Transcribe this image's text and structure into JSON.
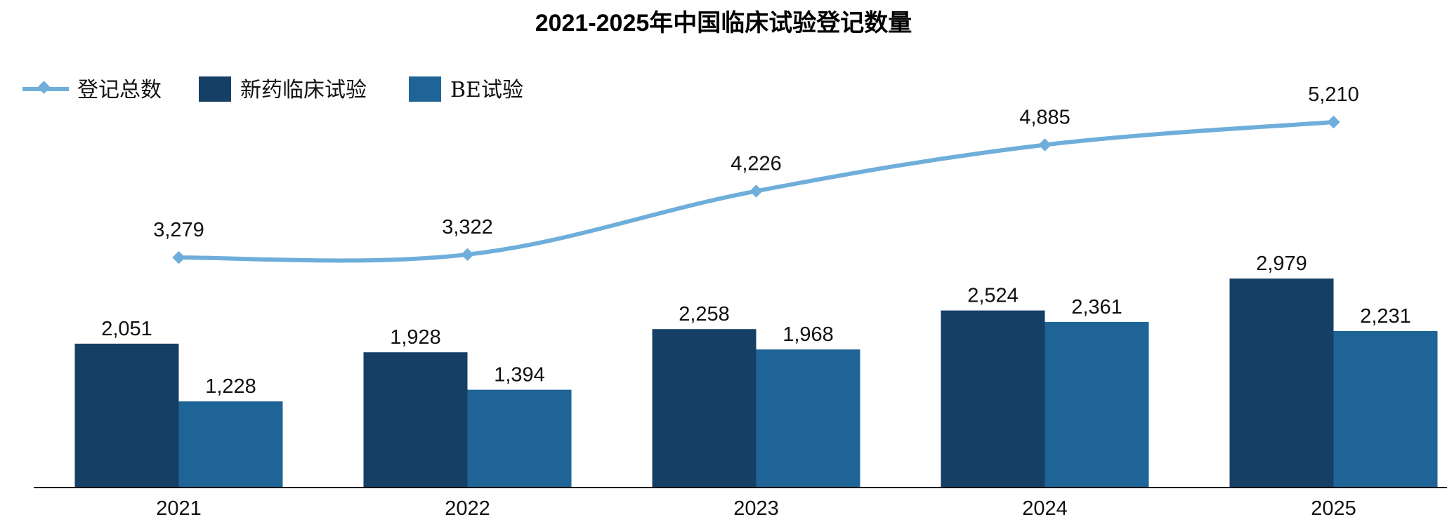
{
  "chart_data": {
    "type": "bar",
    "title": "2021-2025年中国临床试验登记数量",
    "categories": [
      "2021",
      "2022",
      "2023",
      "2024",
      "2025"
    ],
    "series": [
      {
        "name": "新药临床试验",
        "type": "bar",
        "color": "#163F66",
        "values": [
          2051,
          1928,
          2258,
          2524,
          2979
        ],
        "labels": [
          "2,051",
          "1,928",
          "2,258",
          "2,524",
          "2,979"
        ]
      },
      {
        "name": "BE试验",
        "type": "bar",
        "color": "#1F6496",
        "values": [
          1228,
          1394,
          1968,
          2361,
          2231
        ],
        "labels": [
          "1,228",
          "1,394",
          "1,968",
          "2,361",
          "2,231"
        ]
      },
      {
        "name": "登记总数",
        "type": "line",
        "color": "#6FAEDB",
        "values": [
          3279,
          3322,
          4226,
          4885,
          5210
        ],
        "labels": [
          "3,279",
          "3,322",
          "4,226",
          "4,885",
          "5,210"
        ]
      }
    ],
    "xlabel": "",
    "ylabel": "",
    "grid": false,
    "legend_position": "top-left"
  }
}
